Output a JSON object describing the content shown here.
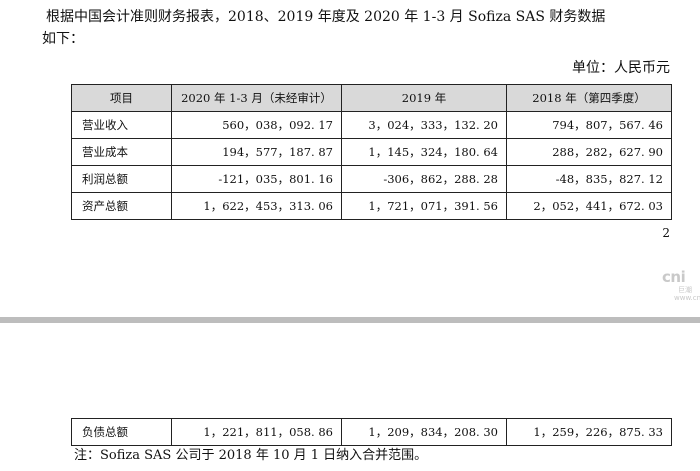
{
  "intro": {
    "line1": "根据中国会计准则财务报表，2018、2019 年度及 2020 年 1-3 月 Sofiza SAS 财务数据",
    "line2": "如下："
  },
  "unit": "单位：人民币元",
  "table": {
    "headers": [
      "项目",
      "2020 年 1-3 月（未经审计）",
      "2019 年",
      "2018 年（第四季度）"
    ],
    "rows": [
      {
        "label": "营业收入",
        "values": [
          "560，038，092. 17",
          "3，024，333，132. 20",
          "794，807，567. 46"
        ]
      },
      {
        "label": "营业成本",
        "values": [
          "194，577，187. 87",
          "1，145，324，180. 64",
          "288，282，627. 90"
        ]
      },
      {
        "label": "利润总额",
        "values": [
          "-121，035，801. 16",
          "-306，862，288. 28",
          "-48，835，827. 12"
        ]
      },
      {
        "label": "资产总额",
        "values": [
          "1，622，453，313. 06",
          "1，721，071，391. 56",
          "2，052，441，672. 03"
        ]
      }
    ]
  },
  "page_number": "2",
  "watermark": {
    "big": "cni",
    "small1": "巨潮",
    "small2": "www.cni"
  },
  "table2": {
    "rows": [
      {
        "label": "负债总额",
        "values": [
          "1，221，811，058. 86",
          "1，209，834，208. 30",
          "1，259，226，875. 33"
        ]
      }
    ]
  },
  "note": "注：Sofiza SAS 公司于 2018 年 10 月 1 日纳入合并范围。"
}
